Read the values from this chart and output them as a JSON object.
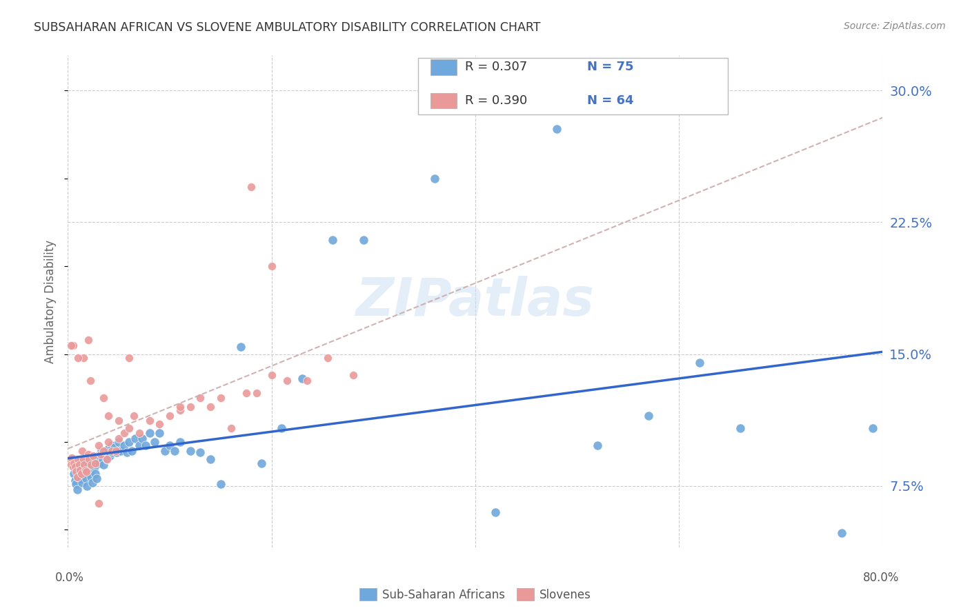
{
  "title": "SUBSAHARAN AFRICAN VS SLOVENE AMBULATORY DISABILITY CORRELATION CHART",
  "source": "Source: ZipAtlas.com",
  "ylabel": "Ambulatory Disability",
  "blue_color": "#6fa8dc",
  "pink_color": "#ea9999",
  "blue_line_color": "#3366cc",
  "pink_line_color": "#cc6677",
  "tick_label_color": "#4472c4",
  "background_color": "#ffffff",
  "watermark": "ZIPatlas",
  "blue_scatter_x": [
    0.004,
    0.005,
    0.006,
    0.007,
    0.008,
    0.009,
    0.01,
    0.01,
    0.011,
    0.012,
    0.013,
    0.014,
    0.015,
    0.016,
    0.017,
    0.018,
    0.019,
    0.02,
    0.021,
    0.022,
    0.023,
    0.024,
    0.025,
    0.026,
    0.027,
    0.028,
    0.03,
    0.031,
    0.033,
    0.034,
    0.035,
    0.037,
    0.038,
    0.04,
    0.041,
    0.043,
    0.044,
    0.046,
    0.048,
    0.05,
    0.052,
    0.055,
    0.058,
    0.06,
    0.063,
    0.066,
    0.07,
    0.073,
    0.076,
    0.08,
    0.085,
    0.09,
    0.095,
    0.1,
    0.105,
    0.11,
    0.12,
    0.13,
    0.14,
    0.15,
    0.17,
    0.19,
    0.21,
    0.23,
    0.26,
    0.29,
    0.36,
    0.42,
    0.48,
    0.52,
    0.57,
    0.62,
    0.66,
    0.76,
    0.79
  ],
  "blue_scatter_y": [
    0.09,
    0.086,
    0.082,
    0.078,
    0.076,
    0.073,
    0.088,
    0.08,
    0.085,
    0.083,
    0.079,
    0.077,
    0.088,
    0.084,
    0.082,
    0.079,
    0.075,
    0.088,
    0.085,
    0.083,
    0.08,
    0.077,
    0.09,
    0.086,
    0.082,
    0.079,
    0.092,
    0.088,
    0.095,
    0.09,
    0.087,
    0.093,
    0.09,
    0.096,
    0.092,
    0.098,
    0.094,
    0.097,
    0.094,
    0.1,
    0.095,
    0.098,
    0.094,
    0.1,
    0.095,
    0.102,
    0.098,
    0.102,
    0.098,
    0.105,
    0.1,
    0.105,
    0.095,
    0.098,
    0.095,
    0.1,
    0.095,
    0.094,
    0.09,
    0.076,
    0.154,
    0.088,
    0.108,
    0.136,
    0.215,
    0.215,
    0.25,
    0.06,
    0.278,
    0.098,
    0.115,
    0.145,
    0.108,
    0.048,
    0.108
  ],
  "pink_scatter_x": [
    0.002,
    0.003,
    0.004,
    0.005,
    0.006,
    0.007,
    0.008,
    0.009,
    0.01,
    0.011,
    0.012,
    0.013,
    0.014,
    0.015,
    0.016,
    0.017,
    0.018,
    0.02,
    0.021,
    0.023,
    0.025,
    0.027,
    0.03,
    0.032,
    0.035,
    0.038,
    0.04,
    0.043,
    0.047,
    0.05,
    0.055,
    0.06,
    0.065,
    0.07,
    0.08,
    0.09,
    0.1,
    0.11,
    0.12,
    0.13,
    0.14,
    0.15,
    0.16,
    0.175,
    0.185,
    0.2,
    0.215,
    0.235,
    0.255,
    0.28,
    0.015,
    0.022,
    0.035,
    0.05,
    0.06,
    0.02,
    0.04,
    0.03,
    0.11,
    0.005,
    0.18,
    0.2,
    0.01,
    0.003
  ],
  "pink_scatter_y": [
    0.09,
    0.087,
    0.091,
    0.086,
    0.088,
    0.086,
    0.083,
    0.08,
    0.09,
    0.087,
    0.084,
    0.082,
    0.095,
    0.09,
    0.087,
    0.084,
    0.083,
    0.093,
    0.09,
    0.087,
    0.092,
    0.088,
    0.098,
    0.093,
    0.095,
    0.09,
    0.1,
    0.095,
    0.095,
    0.102,
    0.105,
    0.108,
    0.115,
    0.105,
    0.112,
    0.11,
    0.115,
    0.118,
    0.12,
    0.125,
    0.12,
    0.125,
    0.108,
    0.128,
    0.128,
    0.138,
    0.135,
    0.135,
    0.148,
    0.138,
    0.148,
    0.135,
    0.125,
    0.112,
    0.148,
    0.158,
    0.115,
    0.065,
    0.12,
    0.155,
    0.245,
    0.2,
    0.148,
    0.155
  ]
}
